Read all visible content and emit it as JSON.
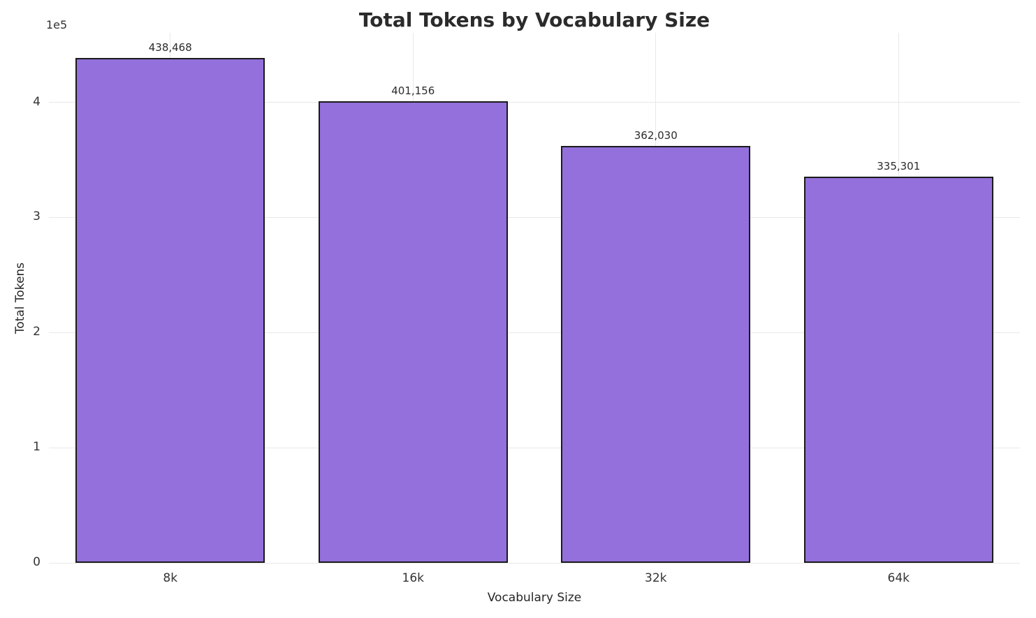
{
  "chart_data": {
    "type": "bar",
    "title": "Total Tokens by Vocabulary Size",
    "xlabel": "Vocabulary Size",
    "ylabel": "Total Tokens",
    "categories": [
      "8k",
      "16k",
      "32k",
      "64k"
    ],
    "values": [
      438468,
      401156,
      362030,
      335301
    ],
    "value_labels": [
      "438,468",
      "401,156",
      "362,030",
      "335,301"
    ],
    "ylim": [
      0,
      460391
    ],
    "yticks": [
      0,
      100000,
      200000,
      300000,
      400000
    ],
    "ytick_labels": [
      "0",
      "1",
      "2",
      "3",
      "4"
    ],
    "offset_text": "1e5",
    "grid": true,
    "legend": false,
    "bar_color": "#9370DB",
    "bar_edge_color": "#1a1a1a",
    "bar_width_fraction": 0.78
  }
}
